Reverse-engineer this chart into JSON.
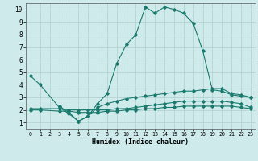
{
  "background_color": "#ceeaea",
  "grid_color": "#b0d0d0",
  "line_color": "#1a7a6e",
  "xlabel": "Humidex (Indice chaleur)",
  "xlim": [
    -0.5,
    23.5
  ],
  "ylim": [
    0.5,
    10.5
  ],
  "xticks": [
    0,
    1,
    2,
    3,
    4,
    5,
    6,
    7,
    8,
    9,
    10,
    11,
    12,
    13,
    14,
    15,
    16,
    17,
    18,
    19,
    20,
    21,
    22,
    23
  ],
  "yticks": [
    1,
    2,
    3,
    4,
    5,
    6,
    7,
    8,
    9,
    10
  ],
  "series": [
    {
      "x": [
        0,
        1,
        3,
        4,
        5,
        6,
        7,
        8,
        9,
        10,
        11,
        12,
        13,
        14,
        15,
        16,
        17,
        18,
        19,
        20,
        21,
        22,
        23
      ],
      "y": [
        4.7,
        4.0,
        2.2,
        1.7,
        1.1,
        1.5,
        2.5,
        3.3,
        5.7,
        7.2,
        8.0,
        10.2,
        9.7,
        10.2,
        10.0,
        9.7,
        8.9,
        6.7,
        3.6,
        3.5,
        3.2,
        3.1,
        3.0
      ]
    },
    {
      "x": [
        0,
        1,
        3,
        4,
        5,
        6,
        7,
        8,
        9,
        10,
        11,
        12,
        13,
        14,
        15,
        16,
        17,
        18,
        19,
        20,
        21,
        22,
        23
      ],
      "y": [
        2.1,
        2.1,
        2.1,
        2.0,
        2.0,
        2.0,
        2.0,
        2.0,
        2.1,
        2.1,
        2.2,
        2.3,
        2.4,
        2.5,
        2.6,
        2.7,
        2.7,
        2.7,
        2.7,
        2.7,
        2.6,
        2.5,
        2.2
      ]
    },
    {
      "x": [
        3,
        4,
        5,
        6,
        7,
        8,
        9,
        10,
        11,
        12,
        13,
        14,
        15,
        16,
        17,
        18,
        19,
        20,
        21,
        22,
        23
      ],
      "y": [
        2.3,
        1.8,
        1.1,
        1.5,
        2.2,
        2.5,
        2.7,
        2.9,
        3.0,
        3.1,
        3.2,
        3.3,
        3.4,
        3.5,
        3.5,
        3.6,
        3.7,
        3.7,
        3.3,
        3.2,
        3.0
      ]
    },
    {
      "x": [
        0,
        1,
        3,
        4,
        5,
        6,
        7,
        8,
        9,
        10,
        11,
        12,
        13,
        14,
        15,
        16,
        17,
        18,
        19,
        20,
        21,
        22,
        23
      ],
      "y": [
        2.0,
        2.0,
        1.9,
        1.9,
        1.8,
        1.8,
        1.8,
        1.9,
        1.9,
        2.0,
        2.0,
        2.1,
        2.1,
        2.2,
        2.2,
        2.3,
        2.3,
        2.3,
        2.3,
        2.3,
        2.3,
        2.2,
        2.1
      ]
    }
  ]
}
